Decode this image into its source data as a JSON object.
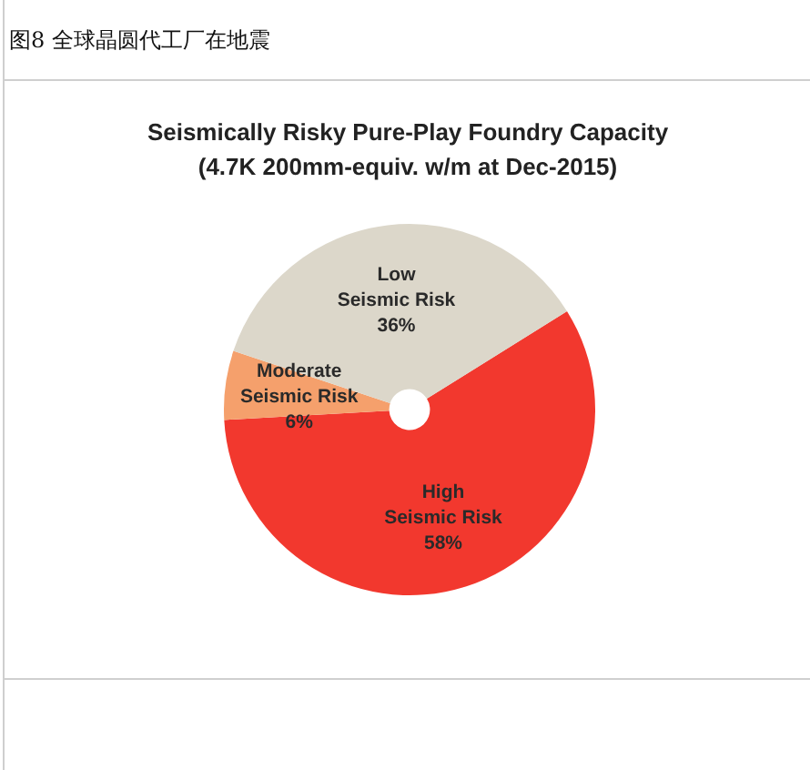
{
  "chart_data": {
    "type": "pie",
    "title": "图8 全球晶圆代工厂在地震",
    "subtitle": "Seismically Risky Pure-Play Foundry Capacity (4.7K 200mm-equiv. w/m at Dec-2015)",
    "categories": [
      "High Seismic Risk",
      "Moderate Seismic Risk",
      "Low Seismic Risk"
    ],
    "values": [
      58,
      6,
      36
    ],
    "colors": [
      "#f2382e",
      "#f5a06c",
      "#dcd7ca"
    ],
    "value_labels": [
      "58%",
      "6%",
      "36%"
    ]
  }
}
